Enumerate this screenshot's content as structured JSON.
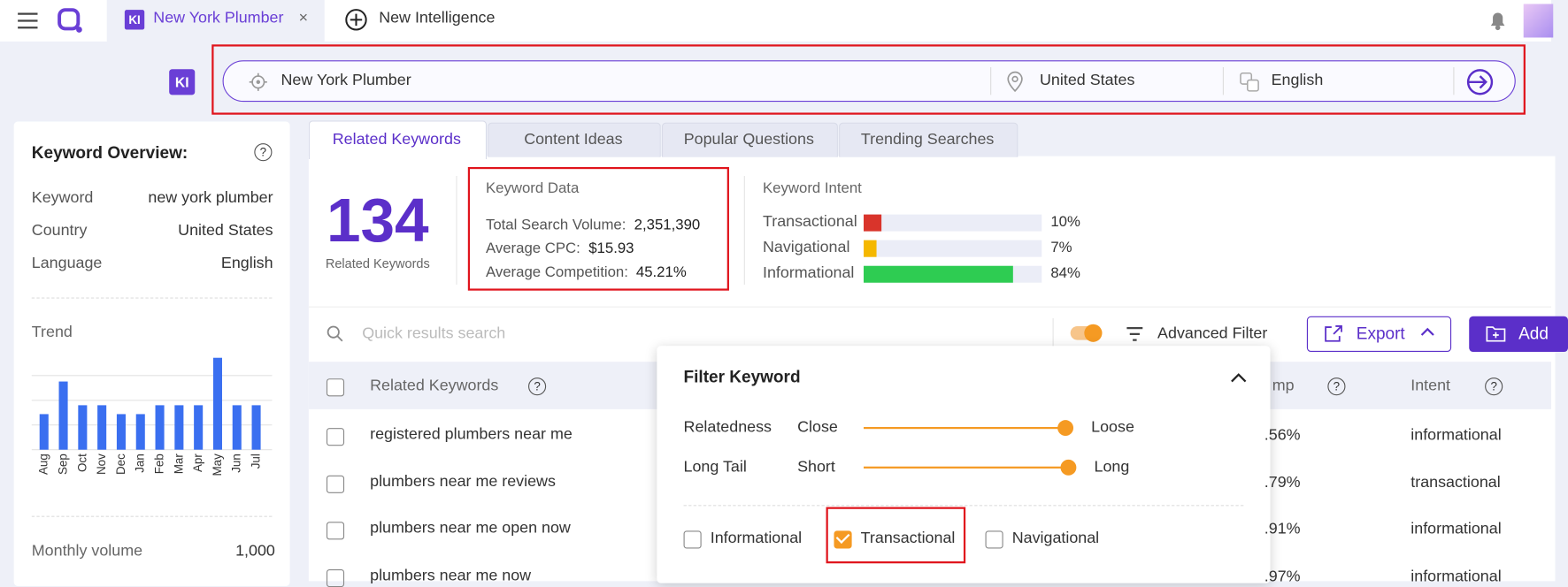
{
  "topbar": {
    "tab_badge": "KI",
    "tab_title": "New York Plumber",
    "tab_close": "×",
    "new_tab": "New Intelligence"
  },
  "search": {
    "badge": "KI",
    "keyword": "New York Plumber",
    "country": "United States",
    "language": "English"
  },
  "overview": {
    "title": "Keyword Overview:",
    "help": "?",
    "rows": [
      [
        "Keyword",
        "new york plumber"
      ],
      [
        "Country",
        "United States"
      ],
      [
        "Language",
        "English"
      ]
    ],
    "trend": {
      "title": "Trend",
      "months": [
        "Aug",
        "Sep",
        "Oct",
        "Nov",
        "Dec",
        "Jan",
        "Feb",
        "Mar",
        "Apr",
        "May",
        "Jun",
        "Jul"
      ],
      "values": [
        36,
        69,
        45,
        45,
        36,
        36,
        45,
        45,
        45,
        93,
        45,
        45
      ],
      "ylim": [
        0,
        100
      ],
      "color": "#3a6ff0"
    },
    "monthly_label": "Monthly volume",
    "monthly_value": "1,000"
  },
  "tabs": [
    "Related Keywords",
    "Content Ideas",
    "Popular Questions",
    "Trending Searches"
  ],
  "summary": {
    "count": "134",
    "count_label": "Related Keywords"
  },
  "keyword_data": {
    "title": "Keyword Data",
    "rows": [
      [
        "Total Search Volume:",
        "2,351,390"
      ],
      [
        "Average CPC:",
        "$15.93"
      ],
      [
        "Average Competition:",
        "45.21%"
      ]
    ]
  },
  "intent": {
    "title": "Keyword Intent",
    "categories": [
      "Transactional",
      "Navigational",
      "Informational"
    ],
    "values": [
      10,
      7,
      84
    ],
    "value_labels": [
      "10%",
      "7%",
      "84%"
    ],
    "colors": [
      "#d9342b",
      "#f5b800",
      "#2ecc52"
    ],
    "xlim": [
      0,
      100
    ]
  },
  "toolbar": {
    "search_placeholder": "Quick results search",
    "advanced_filter": "Advanced Filter",
    "export": "Export",
    "add": "Add"
  },
  "table": {
    "headers": [
      "Related Keywords",
      "mp",
      "Intent"
    ],
    "help": "?",
    "rows": [
      [
        "registered plumbers near me",
        ".56%",
        "informational"
      ],
      [
        "plumbers near me reviews",
        ".79%",
        "transactional"
      ],
      [
        "plumbers near me open now",
        ".91%",
        "informational"
      ],
      [
        "plumbers near me now",
        ".97%",
        "informational"
      ]
    ]
  },
  "filter": {
    "title": "Filter Keyword",
    "sliders": [
      [
        "Relatedness",
        "Close",
        "Loose"
      ],
      [
        "Long Tail",
        "Short",
        "Long"
      ]
    ],
    "options": [
      "Informational",
      "Transactional",
      "Navigational"
    ]
  }
}
